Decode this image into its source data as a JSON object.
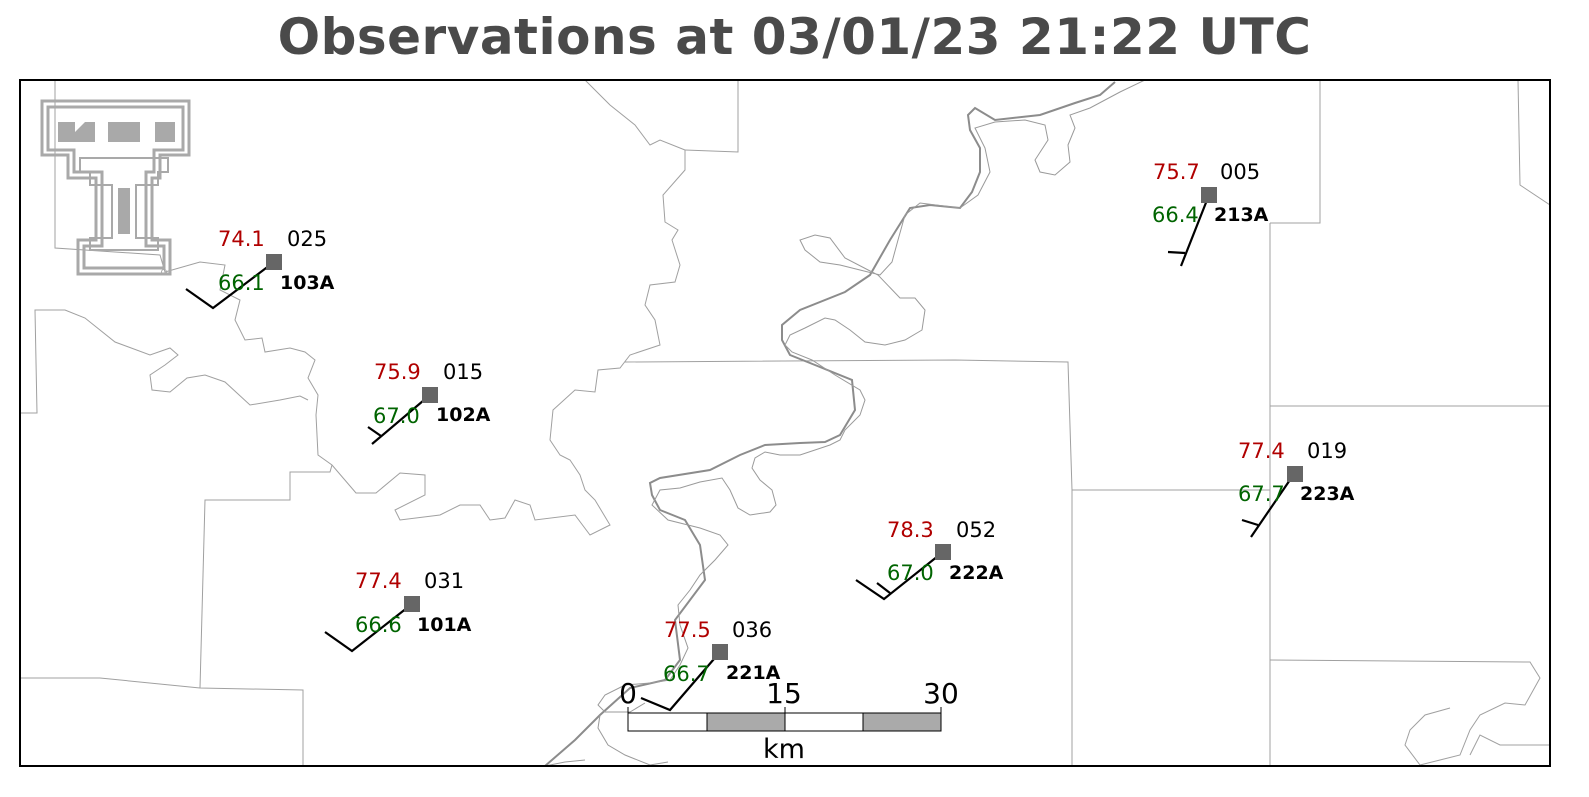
{
  "title": "Observations at 03/01/23 21:22 UTC",
  "logo": {
    "name": "texas-tech-double-t-logo",
    "color": "#a9a9a9"
  },
  "colors": {
    "temperature": "#b00000",
    "dewpoint": "#006400",
    "station_marker": "#666666",
    "river": "#8c8c8c",
    "boundary": "#a0a0a0"
  },
  "stations": [
    {
      "id": "103A",
      "temp": "74.1",
      "dewpoint": "66.1",
      "pressure": "025"
    },
    {
      "id": "102A",
      "temp": "75.9",
      "dewpoint": "67.0",
      "pressure": "015"
    },
    {
      "id": "101A",
      "temp": "77.4",
      "dewpoint": "66.6",
      "pressure": "031"
    },
    {
      "id": "221A",
      "temp": "77.5",
      "dewpoint": "66.7",
      "pressure": "036"
    },
    {
      "id": "222A",
      "temp": "78.3",
      "dewpoint": "67.0",
      "pressure": "052"
    },
    {
      "id": "213A",
      "temp": "75.7",
      "dewpoint": "66.4",
      "pressure": "005"
    },
    {
      "id": "223A",
      "temp": "77.4",
      "dewpoint": "67.7",
      "pressure": "019"
    }
  ],
  "scale_bar": {
    "labels": [
      "0",
      "15",
      "30"
    ],
    "unit": "km"
  }
}
